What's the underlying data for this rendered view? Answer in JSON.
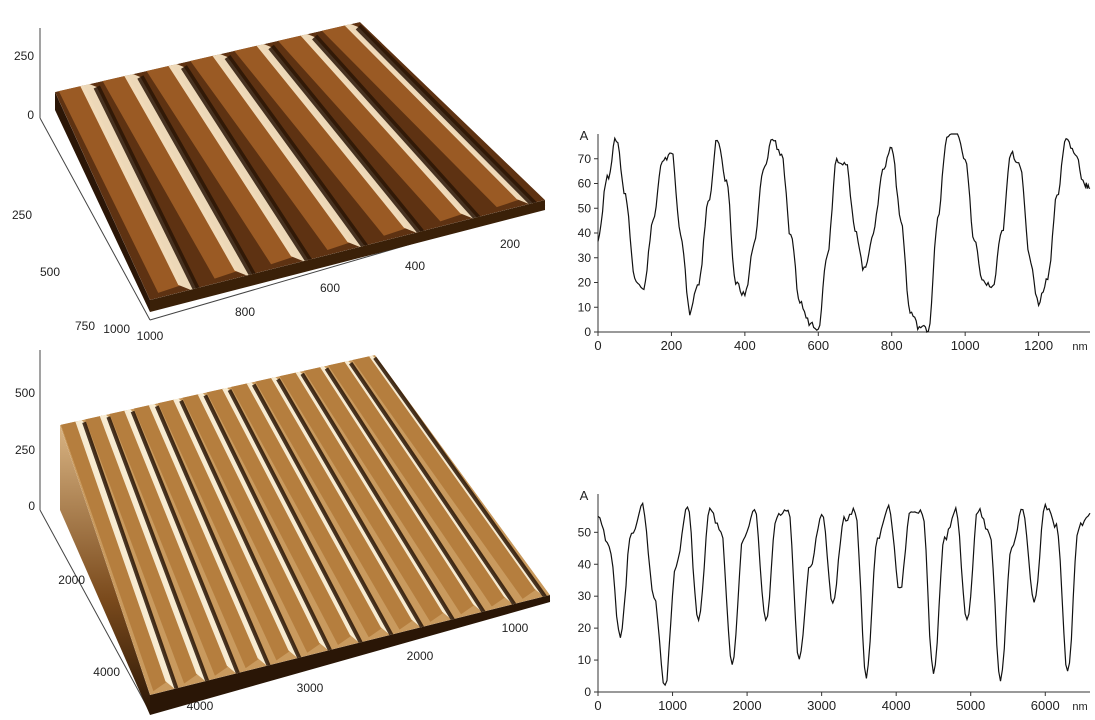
{
  "chart_data": [
    {
      "type": "surface3d",
      "z_ticks": [
        "250",
        "0"
      ],
      "left_axis_ticks": [
        "250",
        "500",
        "750",
        "1000"
      ],
      "right_axis_ticks": [
        "1000",
        "800",
        "600",
        "400",
        "200"
      ],
      "surface_colors": {
        "low": "#2a1606",
        "mid": "#9a5a24",
        "high": "#f4e2c2"
      }
    },
    {
      "type": "line",
      "y_unit_label": "A",
      "x_unit_label": "nm",
      "xlim": [
        0,
        1340
      ],
      "ylim": [
        0,
        80
      ],
      "x_ticks": [
        0,
        200,
        400,
        600,
        800,
        1000,
        1200
      ],
      "y_ticks": [
        0,
        10,
        20,
        30,
        40,
        50,
        60,
        70
      ],
      "x": [
        0,
        25,
        50,
        75,
        100,
        125,
        150,
        175,
        200,
        225,
        250,
        275,
        300,
        325,
        350,
        375,
        400,
        425,
        450,
        475,
        500,
        525,
        550,
        575,
        600,
        625,
        650,
        675,
        700,
        725,
        750,
        775,
        800,
        825,
        850,
        875,
        900,
        925,
        950,
        975,
        1000,
        1025,
        1050,
        1075,
        1100,
        1125,
        1150,
        1175,
        1200,
        1225,
        1250,
        1275,
        1300,
        1325,
        1340
      ],
      "y": [
        38,
        62,
        78,
        55,
        22,
        18,
        45,
        68,
        73,
        40,
        8,
        20,
        52,
        78,
        60,
        20,
        15,
        35,
        65,
        78,
        72,
        38,
        12,
        4,
        2,
        32,
        70,
        68,
        42,
        25,
        40,
        65,
        75,
        45,
        8,
        2,
        1,
        45,
        78,
        82,
        70,
        36,
        20,
        18,
        40,
        72,
        68,
        30,
        12,
        22,
        55,
        78,
        72,
        60,
        58
      ]
    },
    {
      "type": "surface3d",
      "z_ticks": [
        "500",
        "250",
        "0"
      ],
      "left_axis_ticks": [
        "2000",
        "4000"
      ],
      "right_axis_ticks": [
        "4000",
        "3000",
        "2000",
        "1000"
      ],
      "surface_colors": {
        "low": "#2a1606",
        "mid": "#b57e3e",
        "high": "#fbf0d8"
      }
    },
    {
      "type": "line",
      "y_unit_label": "A",
      "x_unit_label": "nm",
      "xlim": [
        0,
        6600
      ],
      "ylim": [
        0,
        62
      ],
      "x_ticks": [
        0,
        1000,
        2000,
        3000,
        4000,
        5000,
        6000
      ],
      "y_ticks": [
        0,
        10,
        20,
        30,
        40,
        50
      ],
      "x": [
        0,
        150,
        300,
        450,
        600,
        750,
        900,
        1050,
        1200,
        1350,
        1500,
        1650,
        1800,
        1950,
        2100,
        2250,
        2400,
        2550,
        2700,
        2850,
        3000,
        3150,
        3300,
        3450,
        3600,
        3750,
        3900,
        4050,
        4200,
        4350,
        4500,
        4650,
        4800,
        4950,
        5100,
        5250,
        5400,
        5550,
        5700,
        5850,
        6000,
        6150,
        6300,
        6450,
        6600
      ],
      "y": [
        56,
        45,
        18,
        50,
        58,
        30,
        2,
        40,
        58,
        22,
        58,
        50,
        8,
        48,
        57,
        22,
        55,
        57,
        10,
        40,
        56,
        28,
        54,
        57,
        5,
        48,
        58,
        32,
        57,
        56,
        6,
        48,
        57,
        22,
        57,
        50,
        4,
        45,
        57,
        28,
        58,
        52,
        6,
        52,
        56
      ]
    }
  ]
}
